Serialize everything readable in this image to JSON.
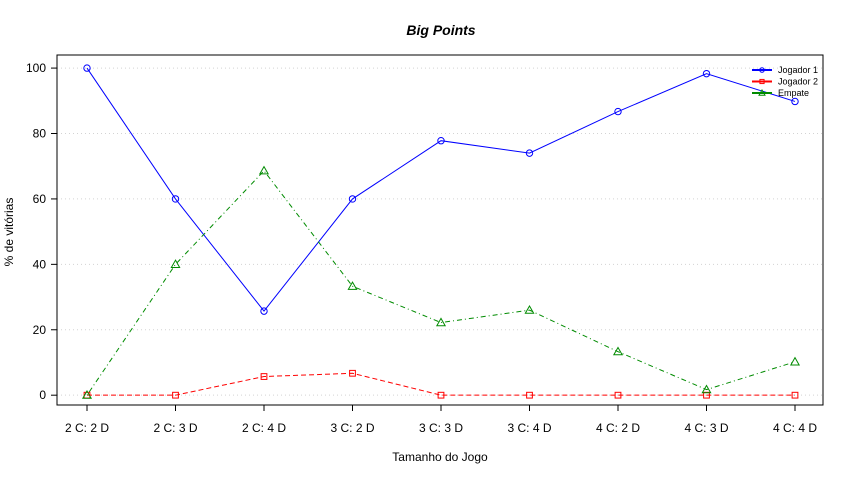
{
  "chart_data": {
    "type": "line",
    "title": "Big Points",
    "xlabel": "Tamanho do Jogo",
    "ylabel": "% de vitórias",
    "categories": [
      "2 C: 2 D",
      "2 C: 3 D",
      "2 C: 4 D",
      "3 C: 2 D",
      "3 C: 3 D",
      "3 C: 4 D",
      "4 C: 2 D",
      "4 C: 3 D",
      "4 C: 4 D"
    ],
    "ylim": [
      -3,
      104
    ],
    "yticks": [
      0,
      20,
      40,
      60,
      80,
      100
    ],
    "grid": true,
    "legend_position": "top-right",
    "series": [
      {
        "name": "Jogador 1",
        "color": "#0000ff",
        "marker": "circle",
        "line_style": "solid",
        "values": [
          100,
          60,
          25.7,
          60,
          77.8,
          74,
          86.7,
          98.3,
          89.8
        ]
      },
      {
        "name": "Jogador 2",
        "color": "#ff0000",
        "marker": "square",
        "line_style": "dashed",
        "values": [
          0,
          0,
          5.7,
          6.7,
          0,
          0,
          0,
          0,
          0
        ]
      },
      {
        "name": "Empate",
        "color": "#008b00",
        "marker": "triangle",
        "line_style": "dotdash",
        "values": [
          0,
          40,
          68.6,
          33.3,
          22.2,
          26,
          13.3,
          1.7,
          10.2
        ]
      }
    ]
  }
}
